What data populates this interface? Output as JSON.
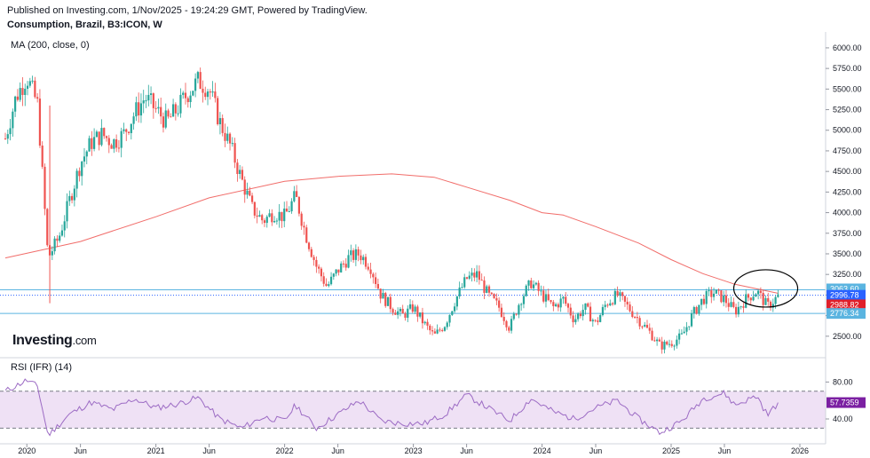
{
  "header": {
    "published": "Published on Investing.com, 1/Nov/2025 - 19:24:29 GMT, Powered by TradingView.",
    "symbol": "Consumption, Brazil, B3:ICON, W",
    "ma_label": "MA (200, close, 0)",
    "rsi_label": "RSI (IFR) (14)"
  },
  "brand": {
    "name": "Investing",
    "suffix": ".com"
  },
  "colors": {
    "up": "#26a69a",
    "down": "#ef5350",
    "ma": "#ef5350",
    "rsi": "#9c6bc4",
    "rsi_band": "#efe1f5",
    "hline": "#5ab4e0",
    "dotted": "#2962ff",
    "tag_3063": "#5ab4e0",
    "tag_2996": "#2962ff",
    "tag_2988": "#e0202a",
    "tag_2776": "#5ab4e0",
    "tag_rsi": "#7b1fa2"
  },
  "chart_data": [
    {
      "type": "candlestick",
      "title": "Consumption, Brazil, B3:ICON, W",
      "ylim": [
        2250,
        6150
      ],
      "y_ticks": [
        2500,
        2750,
        3000,
        3250,
        3500,
        3750,
        4000,
        4250,
        4500,
        4750,
        5000,
        5250,
        5500,
        5750,
        6000
      ],
      "x_tick_labels": [
        "2020",
        "Jun",
        "2021",
        "Jun",
        "2022",
        "Jun",
        "2023",
        "Jun",
        "2024",
        "Jun",
        "2025",
        "Jun",
        "2026"
      ],
      "x_ticks": [
        "2020-01",
        "2020-06",
        "2021-01",
        "2021-06",
        "2022-01",
        "2022-06",
        "2023-01",
        "2023-06",
        "2024-01",
        "2024-06",
        "2025-01",
        "2025-06",
        "2026-01"
      ],
      "series_close": [
        [
          "2019-11",
          4900
        ],
        [
          "2019-12",
          5400
        ],
        [
          "2020-01",
          5650
        ],
        [
          "2020-02",
          5300
        ],
        [
          "2020-03",
          3450
        ],
        [
          "2020-04",
          3700
        ],
        [
          "2020-05",
          4150
        ],
        [
          "2020-06",
          4600
        ],
        [
          "2020-07",
          4850
        ],
        [
          "2020-08",
          4950
        ],
        [
          "2020-09",
          4850
        ],
        [
          "2020-10",
          4950
        ],
        [
          "2020-11",
          5200
        ],
        [
          "2020-12",
          5400
        ],
        [
          "2021-01",
          5250
        ],
        [
          "2021-02",
          5100
        ],
        [
          "2021-03",
          5250
        ],
        [
          "2021-04",
          5450
        ],
        [
          "2021-05",
          5600
        ],
        [
          "2021-06",
          5500
        ],
        [
          "2021-07",
          5100
        ],
        [
          "2021-08",
          4800
        ],
        [
          "2021-09",
          4400
        ],
        [
          "2021-10",
          4050
        ],
        [
          "2021-11",
          3900
        ],
        [
          "2021-12",
          4000
        ],
        [
          "2022-01",
          3950
        ],
        [
          "2022-02",
          4200
        ],
        [
          "2022-03",
          3750
        ],
        [
          "2022-04",
          3350
        ],
        [
          "2022-05",
          3100
        ],
        [
          "2022-06",
          3300
        ],
        [
          "2022-07",
          3450
        ],
        [
          "2022-08",
          3500
        ],
        [
          "2022-09",
          3350
        ],
        [
          "2022-10",
          3000
        ],
        [
          "2022-11",
          2850
        ],
        [
          "2022-12",
          2750
        ],
        [
          "2023-01",
          2850
        ],
        [
          "2023-02",
          2650
        ],
        [
          "2023-03",
          2500
        ],
        [
          "2023-04",
          2650
        ],
        [
          "2023-05",
          2950
        ],
        [
          "2023-06",
          3200
        ],
        [
          "2023-07",
          3250
        ],
        [
          "2023-08",
          3000
        ],
        [
          "2023-09",
          2850
        ],
        [
          "2023-10",
          2600
        ],
        [
          "2023-11",
          2950
        ],
        [
          "2023-12",
          3150
        ],
        [
          "2024-01",
          3000
        ],
        [
          "2024-02",
          2850
        ],
        [
          "2024-03",
          2950
        ],
        [
          "2024-04",
          2700
        ],
        [
          "2024-05",
          2850
        ],
        [
          "2024-06",
          2650
        ],
        [
          "2024-07",
          2900
        ],
        [
          "2024-08",
          3000
        ],
        [
          "2024-09",
          2850
        ],
        [
          "2024-10",
          2700
        ],
        [
          "2024-11",
          2550
        ],
        [
          "2024-12",
          2380
        ],
        [
          "2025-01",
          2420
        ],
        [
          "2025-02",
          2500
        ],
        [
          "2025-03",
          2750
        ],
        [
          "2025-04",
          2950
        ],
        [
          "2025-05",
          3030
        ],
        [
          "2025-06",
          2950
        ],
        [
          "2025-07",
          2800
        ],
        [
          "2025-08",
          2950
        ],
        [
          "2025-09",
          3050
        ],
        [
          "2025-10",
          2860
        ],
        [
          "2025-11",
          2988.82
        ]
      ],
      "ma": {
        "name": "MA (200, close, 0)",
        "points": [
          [
            "2019-11",
            3450
          ],
          [
            "2020-06",
            3650
          ],
          [
            "2021-01",
            3950
          ],
          [
            "2021-06",
            4180
          ],
          [
            "2022-01",
            4380
          ],
          [
            "2022-06",
            4440
          ],
          [
            "2022-11",
            4470
          ],
          [
            "2023-03",
            4430
          ],
          [
            "2023-06",
            4310
          ],
          [
            "2023-10",
            4150
          ],
          [
            "2024-01",
            4000
          ],
          [
            "2024-03",
            3970
          ],
          [
            "2024-06",
            3830
          ],
          [
            "2024-10",
            3630
          ],
          [
            "2025-01",
            3430
          ],
          [
            "2025-04",
            3260
          ],
          [
            "2025-07",
            3130
          ],
          [
            "2025-11",
            3020
          ]
        ]
      },
      "price_levels": [
        {
          "value": 3063.6,
          "label": "3063.60",
          "style": "solid"
        },
        {
          "value": 2996.78,
          "label": "2996.78",
          "style": "dotted"
        },
        {
          "value": 2988.82,
          "label": "2988.82",
          "style": "none"
        },
        {
          "value": 2776.34,
          "label": "2776.34",
          "style": "solid"
        }
      ],
      "annotation": {
        "type": "ellipse",
        "center": [
          "2025-09",
          3080
        ]
      }
    },
    {
      "type": "line",
      "title": "RSI (IFR) (14)",
      "ylim": [
        15,
        90
      ],
      "y_ticks": [
        40,
        80
      ],
      "band": [
        30,
        70
      ],
      "points": [
        [
          "2019-11",
          70
        ],
        [
          "2020-01",
          82
        ],
        [
          "2020-02",
          75
        ],
        [
          "2020-03",
          22
        ],
        [
          "2020-05",
          45
        ],
        [
          "2020-07",
          58
        ],
        [
          "2020-09",
          50
        ],
        [
          "2020-11",
          62
        ],
        [
          "2021-01",
          52
        ],
        [
          "2021-03",
          56
        ],
        [
          "2021-05",
          63
        ],
        [
          "2021-07",
          40
        ],
        [
          "2021-09",
          30
        ],
        [
          "2021-11",
          42
        ],
        [
          "2022-01",
          38
        ],
        [
          "2022-02",
          55
        ],
        [
          "2022-04",
          30
        ],
        [
          "2022-06",
          45
        ],
        [
          "2022-08",
          60
        ],
        [
          "2022-10",
          38
        ],
        [
          "2022-12",
          35
        ],
        [
          "2023-02",
          35
        ],
        [
          "2023-04",
          45
        ],
        [
          "2023-06",
          66
        ],
        [
          "2023-08",
          52
        ],
        [
          "2023-10",
          38
        ],
        [
          "2023-12",
          62
        ],
        [
          "2024-02",
          48
        ],
        [
          "2024-04",
          40
        ],
        [
          "2024-06",
          52
        ],
        [
          "2024-08",
          60
        ],
        [
          "2024-10",
          40
        ],
        [
          "2024-12",
          25
        ],
        [
          "2025-02",
          38
        ],
        [
          "2025-04",
          62
        ],
        [
          "2025-06",
          68
        ],
        [
          "2025-07",
          55
        ],
        [
          "2025-09",
          65
        ],
        [
          "2025-10",
          44
        ],
        [
          "2025-11",
          57.7359
        ]
      ],
      "last_value": 57.7359,
      "last_label": "57.7359"
    }
  ]
}
